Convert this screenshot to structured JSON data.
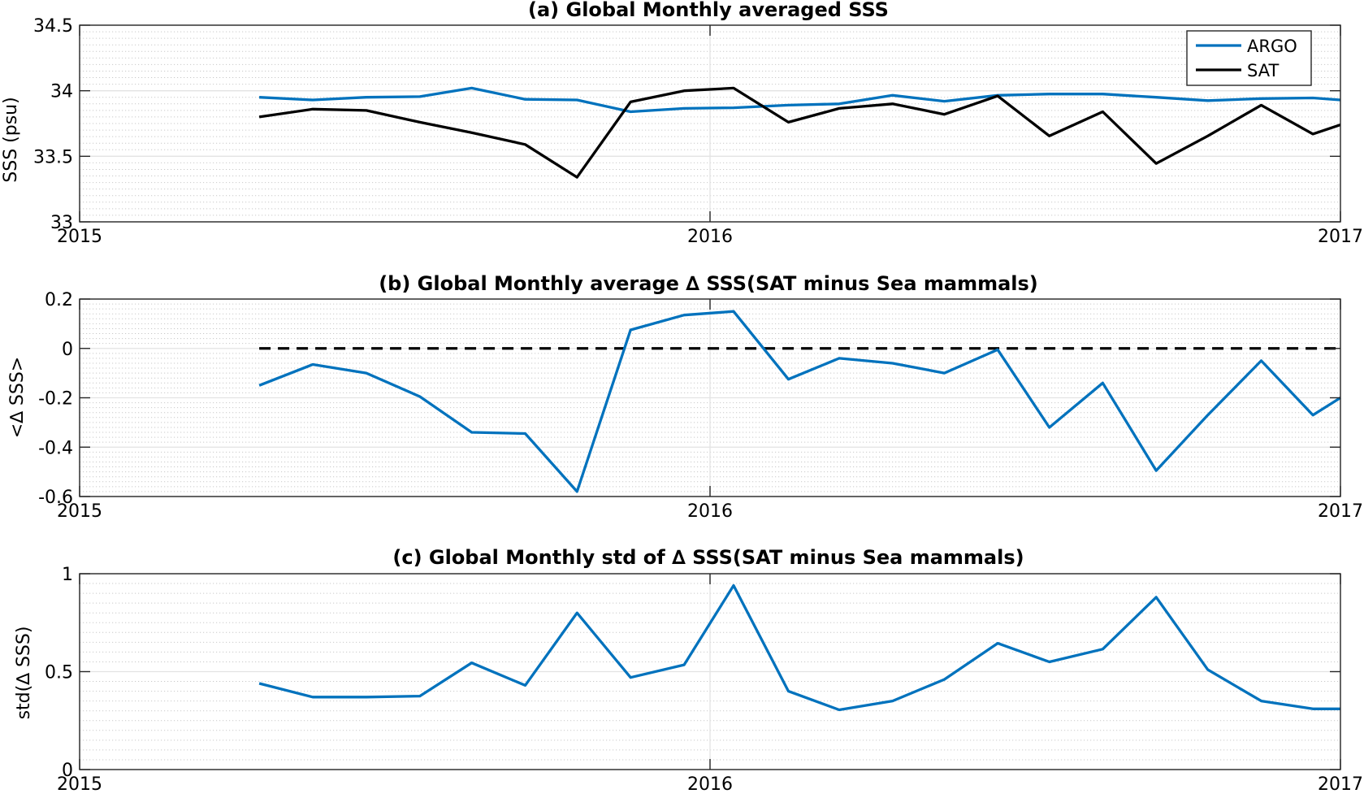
{
  "chart_data": [
    {
      "type": "line",
      "title": "(a) Global Monthly averaged SSS",
      "xlabel": "",
      "ylabel": "SSS (psu)",
      "xlim": [
        2015,
        2017
      ],
      "ylim": [
        33,
        34.5
      ],
      "xticks": [
        2015,
        2016,
        2017
      ],
      "xtick_labels": [
        "2015",
        "2016",
        "2017"
      ],
      "yticks": [
        33,
        33.5,
        34,
        34.5
      ],
      "ytick_labels": [
        "33",
        "33.5",
        "34",
        "34.5"
      ],
      "minor_grid": true,
      "legend": "top-right",
      "x": [
        2015.2849,
        2015.3699,
        2015.4548,
        2015.5397,
        2015.6219,
        2015.7068,
        2015.789,
        2015.874,
        2015.9589,
        2016.0374,
        2016.1243,
        2016.2049,
        2016.2896,
        2016.3716,
        2016.4563,
        2016.5383,
        2016.623,
        2016.7077,
        2016.7896,
        2016.8743,
        2016.9563,
        2017.0
      ],
      "series": [
        {
          "name": "ARGO",
          "color": "#0072BD",
          "values": [
            33.95,
            33.93,
            33.95,
            33.955,
            34.02,
            33.935,
            33.93,
            33.84,
            33.865,
            33.87,
            33.89,
            33.9,
            33.965,
            33.92,
            33.965,
            33.975,
            33.975,
            33.95,
            33.925,
            33.94,
            33.945,
            33.93
          ]
        },
        {
          "name": "SAT",
          "color": "#000000",
          "values": [
            33.8,
            33.86,
            33.85,
            33.76,
            33.68,
            33.59,
            33.34,
            33.915,
            34.0,
            34.02,
            33.76,
            33.865,
            33.9,
            33.82,
            33.96,
            33.655,
            33.84,
            33.445,
            33.655,
            33.89,
            33.67,
            33.74
          ]
        }
      ]
    },
    {
      "type": "line",
      "title": "(b) Global Monthly average ∆ SSS(SAT minus Sea mammals)",
      "xlabel": "",
      "ylabel": "<∆ SSS>",
      "xlim": [
        2015,
        2017
      ],
      "ylim": [
        -0.6,
        0.2
      ],
      "xticks": [
        2015,
        2016,
        2017
      ],
      "xtick_labels": [
        "2015",
        "2016",
        "2017"
      ],
      "yticks": [
        -0.6,
        -0.4,
        -0.2,
        0,
        0.2
      ],
      "ytick_labels": [
        "-0.6",
        "-0.4",
        "-0.2",
        "0",
        "0.2"
      ],
      "minor_grid": true,
      "reference_line": {
        "y": 0,
        "style": "dashed",
        "color": "#000000"
      },
      "x": [
        2015.2849,
        2015.3699,
        2015.4548,
        2015.5397,
        2015.6219,
        2015.7068,
        2015.789,
        2015.874,
        2015.9589,
        2016.0374,
        2016.1243,
        2016.2049,
        2016.2896,
        2016.3716,
        2016.4563,
        2016.5383,
        2016.623,
        2016.7077,
        2016.7896,
        2016.8743,
        2016.9563,
        2017.0
      ],
      "series": [
        {
          "color": "#0072BD",
          "values": [
            -0.15,
            -0.065,
            -0.1,
            -0.195,
            -0.34,
            -0.345,
            -0.58,
            0.075,
            0.135,
            0.15,
            -0.125,
            -0.04,
            -0.06,
            -0.1,
            -0.005,
            -0.32,
            -0.14,
            -0.495,
            -0.27,
            -0.05,
            -0.27,
            -0.2
          ]
        }
      ]
    },
    {
      "type": "line",
      "title": "(c) Global Monthly std of ∆ SSS(SAT minus Sea mammals)",
      "xlabel": "",
      "ylabel": "std(∆ SSS)",
      "xlim": [
        2015,
        2017
      ],
      "ylim": [
        0,
        1
      ],
      "xticks": [
        2015,
        2016,
        2017
      ],
      "xtick_labels": [
        "2015",
        "2016",
        "2017"
      ],
      "yticks": [
        0,
        0.5,
        1
      ],
      "ytick_labels": [
        "0",
        "0.5",
        "1"
      ],
      "minor_grid": true,
      "x": [
        2015.2849,
        2015.3699,
        2015.4548,
        2015.5397,
        2015.6219,
        2015.7068,
        2015.789,
        2015.874,
        2015.9589,
        2016.0374,
        2016.1243,
        2016.2049,
        2016.2896,
        2016.3716,
        2016.4563,
        2016.5383,
        2016.623,
        2016.7077,
        2016.7896,
        2016.8743,
        2016.9563,
        2017.0
      ],
      "series": [
        {
          "color": "#0072BD",
          "values": [
            0.44,
            0.37,
            0.37,
            0.375,
            0.545,
            0.43,
            0.8,
            0.47,
            0.535,
            0.94,
            0.4,
            0.305,
            0.35,
            0.46,
            0.645,
            0.55,
            0.615,
            0.88,
            0.51,
            0.35,
            0.31,
            0.31
          ]
        }
      ]
    }
  ]
}
